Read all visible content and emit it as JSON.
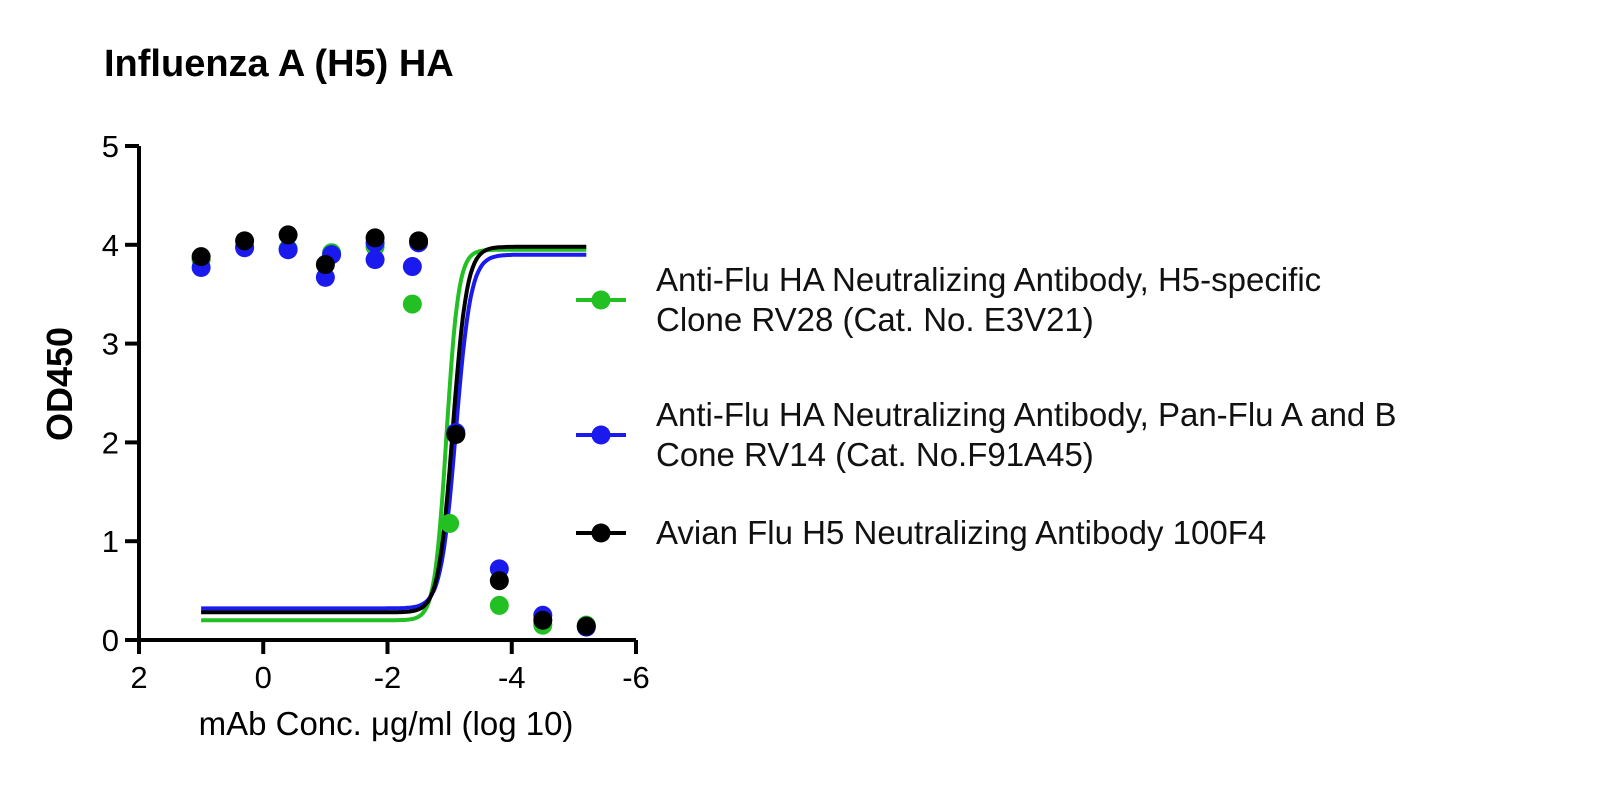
{
  "chart_data": {
    "type": "scatter",
    "title": "Influenza A (H5) HA",
    "x_label": "mAb Conc. μg/ml (log 10)",
    "y_label": "OD450",
    "xlim": [
      2,
      -6
    ],
    "xticks": [
      2,
      0,
      -2,
      -4,
      -6
    ],
    "ylim": [
      0,
      5
    ],
    "yticks": [
      0,
      1,
      2,
      3,
      4,
      5
    ],
    "series": [
      {
        "name": "Anti-Flu HA Neutralizing Antibody, H5-specific\nClone RV28 (Cat. No. E3V21)",
        "color": "#22c022",
        "x": [
          1.0,
          0.3,
          -0.4,
          -1.1,
          -1.8,
          -2.4,
          -3.0,
          -3.8,
          -4.5,
          -5.2
        ],
        "values": [
          3.85,
          3.98,
          3.96,
          3.92,
          3.98,
          3.4,
          1.18,
          0.35,
          0.15,
          0.15
        ],
        "fit": {
          "top": 3.95,
          "bottom": 0.2,
          "mid": -2.95,
          "hill": 4.5
        }
      },
      {
        "name": "Anti-Flu HA Neutralizing Antibody, Pan-Flu A and B\nCone RV14 (Cat. No.F91A45)",
        "color": "#1a1aee",
        "x": [
          1.0,
          0.3,
          -0.4,
          -1.0,
          -1.1,
          -1.8,
          -1.8,
          -2.4,
          -2.5,
          -3.1,
          -3.8,
          -4.5,
          -5.2
        ],
        "values": [
          3.77,
          3.97,
          3.95,
          3.67,
          3.9,
          3.85,
          4.02,
          3.78,
          4.02,
          2.1,
          0.72,
          0.25,
          0.13
        ],
        "fit": {
          "top": 3.9,
          "bottom": 0.32,
          "mid": -3.1,
          "hill": 3.6
        }
      },
      {
        "name": "Avian Flu H5 Neutralizing Antibody 100F4",
        "color": "#000000",
        "x": [
          1.0,
          0.3,
          -0.4,
          -1.0,
          -1.8,
          -2.5,
          -3.1,
          -3.8,
          -4.5,
          -5.2
        ],
        "values": [
          3.88,
          4.04,
          4.1,
          3.8,
          4.07,
          4.04,
          2.08,
          0.6,
          0.2,
          0.14
        ],
        "fit": {
          "top": 3.98,
          "bottom": 0.28,
          "mid": -3.05,
          "hill": 3.8
        }
      }
    ]
  }
}
